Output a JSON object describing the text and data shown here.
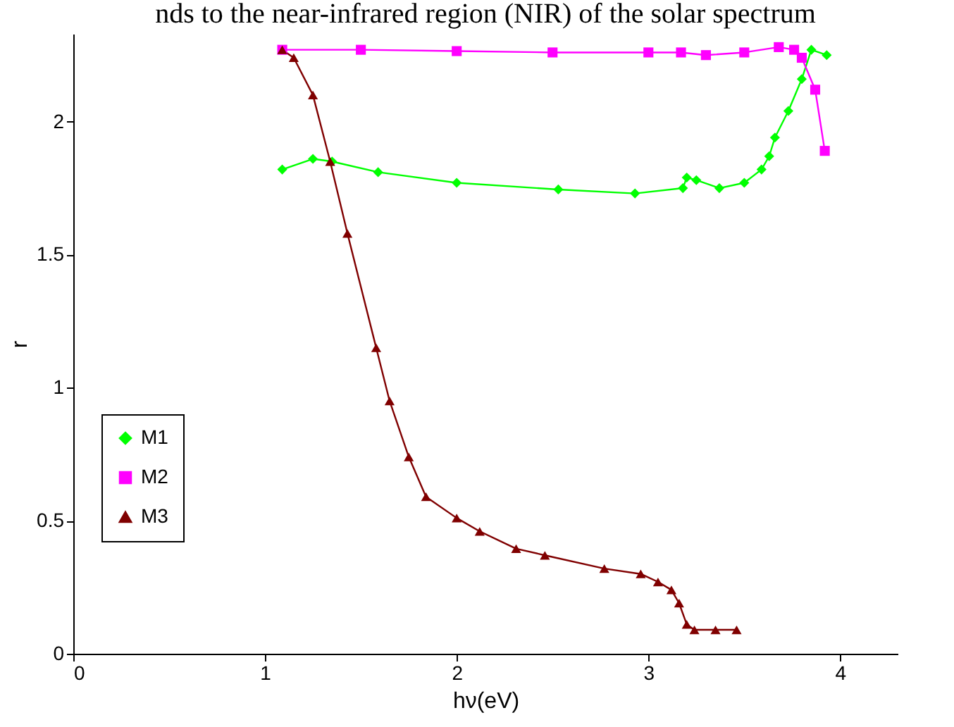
{
  "chart_data": {
    "type": "line",
    "title": "nds to the near-infrared region (NIR) of the solar spectrum",
    "xlabel": "hν(eV)",
    "ylabel": "r",
    "xlim": [
      0,
      4.3
    ],
    "xticks": [
      0,
      1,
      2,
      3,
      4
    ],
    "ylim": [
      0,
      2.33
    ],
    "yticks": [
      0,
      0.5,
      1,
      1.5,
      2
    ],
    "grid": false,
    "legend": "left",
    "series": [
      {
        "name": "M1",
        "color": "#00ff00",
        "marker": "diamond",
        "x": [
          1.09,
          1.25,
          1.35,
          1.59,
          2.0,
          2.53,
          2.93,
          3.18,
          3.2,
          3.25,
          3.37,
          3.5,
          3.59,
          3.63,
          3.66,
          3.73,
          3.8,
          3.85,
          3.93
        ],
        "values": [
          1.82,
          1.86,
          1.85,
          1.81,
          1.77,
          1.745,
          1.73,
          1.75,
          1.79,
          1.78,
          1.75,
          1.77,
          1.82,
          1.87,
          1.94,
          2.04,
          2.16,
          2.27,
          2.25
        ]
      },
      {
        "name": "M2",
        "color": "#ff00ff",
        "marker": "square",
        "x": [
          1.09,
          1.5,
          2.0,
          2.5,
          3.0,
          3.17,
          3.3,
          3.5,
          3.68,
          3.76,
          3.8,
          3.87,
          3.92
        ],
        "values": [
          2.27,
          2.27,
          2.265,
          2.26,
          2.26,
          2.26,
          2.25,
          2.26,
          2.28,
          2.27,
          2.24,
          2.12,
          1.89
        ]
      },
      {
        "name": "M3",
        "color": "#800000",
        "marker": "triangle",
        "x": [
          1.09,
          1.15,
          1.25,
          1.34,
          1.43,
          1.58,
          1.65,
          1.75,
          1.84,
          2.0,
          2.12,
          2.31,
          2.46,
          2.77,
          2.96,
          3.05,
          3.12,
          3.16,
          3.2,
          3.24,
          3.35,
          3.46
        ],
        "values": [
          2.27,
          2.24,
          2.1,
          1.85,
          1.58,
          1.15,
          0.95,
          0.74,
          0.59,
          0.51,
          0.46,
          0.395,
          0.37,
          0.32,
          0.3,
          0.27,
          0.24,
          0.19,
          0.11,
          0.09,
          0.09,
          0.09
        ]
      }
    ]
  }
}
